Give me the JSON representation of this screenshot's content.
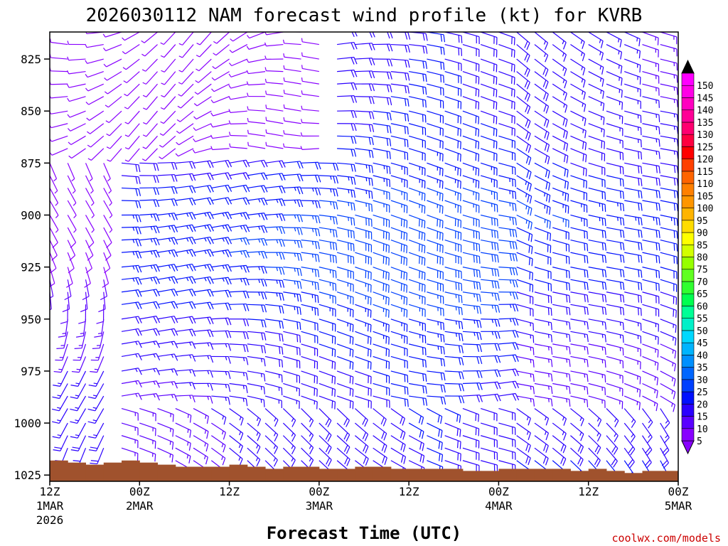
{
  "chart_data": {
    "type": "wind-barb-time-height",
    "title": "2026030112 NAM forecast wind profile (kt) for KVRB",
    "xlabel": "Forecast Time (UTC)",
    "credit": "coolwx.com/models",
    "y_axis": {
      "quantity": "pressure (hPa)",
      "range": [
        812,
        1028
      ],
      "inverted": true,
      "ticks": [
        "825",
        "850",
        "875",
        "900",
        "925",
        "950",
        "975",
        "1000",
        "1025"
      ]
    },
    "x_axis": {
      "range_hours": [
        0,
        84
      ],
      "ticks": [
        {
          "line1": "12Z",
          "line2": "1MAR",
          "line3": "2026"
        },
        {
          "line1": "00Z",
          "line2": "2MAR",
          "line3": ""
        },
        {
          "line1": "12Z",
          "line2": "",
          "line3": ""
        },
        {
          "line1": "00Z",
          "line2": "3MAR",
          "line3": ""
        },
        {
          "line1": "12Z",
          "line2": "",
          "line3": ""
        },
        {
          "line1": "00Z",
          "line2": "4MAR",
          "line3": ""
        },
        {
          "line1": "12Z",
          "line2": "",
          "line3": ""
        },
        {
          "line1": "00Z",
          "line2": "5MAR",
          "line3": ""
        }
      ]
    },
    "colorbar": {
      "unit": "kt",
      "levels": [
        5,
        10,
        15,
        20,
        25,
        30,
        35,
        40,
        45,
        50,
        55,
        60,
        65,
        70,
        75,
        80,
        85,
        90,
        95,
        100,
        105,
        110,
        115,
        120,
        125,
        130,
        135,
        140,
        145,
        150
      ],
      "colors": [
        "#8800ff",
        "#5a00ff",
        "#2a00ff",
        "#0010ff",
        "#0040ff",
        "#0066ff",
        "#0090ff",
        "#00b4ff",
        "#00d8ff",
        "#00f0c8",
        "#00ff96",
        "#00ff50",
        "#30ff30",
        "#60ff20",
        "#96ff00",
        "#d2ff00",
        "#ffff00",
        "#ffdc00",
        "#ffb400",
        "#ff9600",
        "#ff8000",
        "#ff6400",
        "#ff4000",
        "#ff0000",
        "#ff0040",
        "#ff0070",
        "#ff0096",
        "#ff00c0",
        "#ff00e6",
        "#ff00ff"
      ],
      "above_color": "#000000",
      "below_color": "#8800ff"
    },
    "wind_field": {
      "time_step_hours": 3,
      "levels_hpa": [
        812,
        818,
        825,
        831,
        837,
        843,
        850,
        856,
        862,
        868,
        875,
        881,
        887,
        893,
        900,
        906,
        912,
        918,
        925,
        931,
        937,
        943,
        950,
        956,
        962,
        968,
        975,
        981,
        987,
        993,
        1000,
        1006,
        1012,
        1018,
        1025
      ],
      "speed_kt_sample": [
        {
          "time_hours": 0,
          "pressure_hpa": 825,
          "speed_kt": 10,
          "direction": "W"
        },
        {
          "time_hours": 24,
          "pressure_hpa": 900,
          "speed_kt": 25,
          "direction": "E"
        },
        {
          "time_hours": 48,
          "pressure_hpa": 850,
          "speed_kt": 25,
          "direction": "E"
        },
        {
          "time_hours": 72,
          "pressure_hpa": 950,
          "speed_kt": 20,
          "direction": "SE"
        }
      ]
    },
    "terrain": {
      "color": "#a0522d",
      "surface_pressure_hpa": [
        1018,
        1019,
        1020,
        1019,
        1018,
        1019,
        1020,
        1021,
        1021,
        1021,
        1020,
        1021,
        1022,
        1021,
        1021,
        1022,
        1022,
        1021,
        1021,
        1022,
        1022,
        1022,
        1022,
        1023,
        1023,
        1022,
        1022,
        1022,
        1022,
        1023,
        1022,
        1023,
        1024,
        1023,
        1023
      ]
    },
    "grid": false,
    "legend": "right"
  }
}
